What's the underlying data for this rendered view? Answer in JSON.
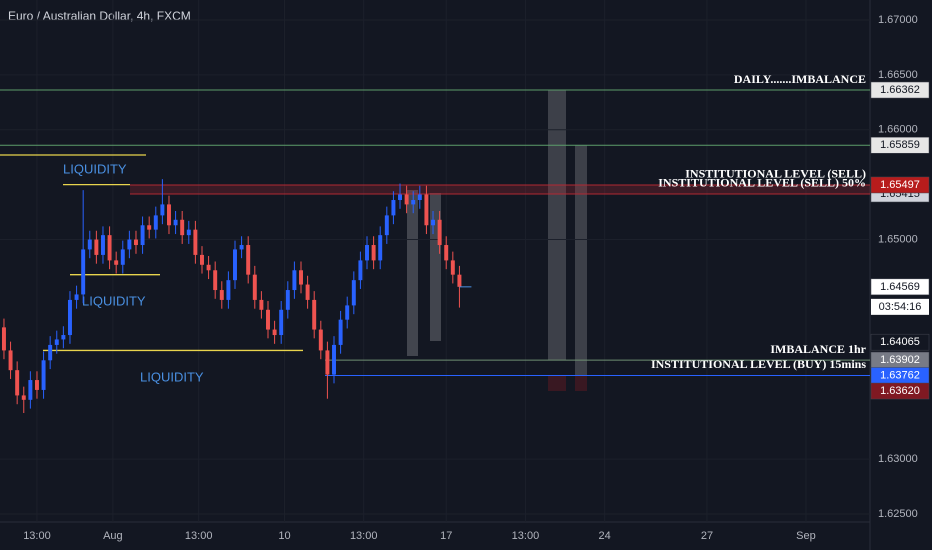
{
  "chart_data": {
    "type": "candlestick",
    "title": "Euro / Australian Dollar, 4h, FXCM",
    "open": [
      1.642,
      1.6399,
      1.6381,
      1.6358,
      1.6354,
      1.6372,
      1.6363,
      1.639,
      1.6404,
      1.6409,
      1.6413,
      1.6445,
      1.645,
      1.6491,
      1.65,
      1.6486,
      1.6504,
      1.6481,
      1.6477,
      1.6491,
      1.65,
      1.6495,
      1.6513,
      1.6509,
      1.6522,
      1.6532,
      1.6513,
      1.6518,
      1.6504,
      1.6509,
      1.6486,
      1.6477,
      1.6472,
      1.6454,
      1.6445,
      1.6463,
      1.6491,
      1.6495,
      1.6468,
      1.6445,
      1.6436,
      1.6418,
      1.6413,
      1.6436,
      1.6454,
      1.6472,
      1.6459,
      1.6445,
      1.6418,
      1.6399,
      1.6377,
      1.6404,
      1.6427,
      1.644,
      1.6463,
      1.6481,
      1.6495,
      1.6481,
      1.6504,
      1.6522,
      1.6536,
      1.6541,
      1.6532,
      1.6536,
      1.6541,
      1.6513,
      1.6518,
      1.6495,
      1.6481,
      1.6468
    ],
    "high": [
      1.6428,
      1.6407,
      1.6389,
      1.6366,
      1.638,
      1.638,
      1.6398,
      1.6412,
      1.6417,
      1.6421,
      1.6453,
      1.6458,
      1.6545,
      1.6508,
      1.6508,
      1.6512,
      1.6512,
      1.6489,
      1.6499,
      1.6508,
      1.6508,
      1.6521,
      1.6521,
      1.653,
      1.6555,
      1.654,
      1.6526,
      1.6526,
      1.6517,
      1.6517,
      1.6494,
      1.6485,
      1.648,
      1.6462,
      1.6471,
      1.6499,
      1.6503,
      1.6503,
      1.6476,
      1.6453,
      1.6444,
      1.6426,
      1.6444,
      1.6462,
      1.648,
      1.648,
      1.6467,
      1.6453,
      1.6426,
      1.6407,
      1.6412,
      1.6435,
      1.6448,
      1.6471,
      1.6489,
      1.6503,
      1.6503,
      1.6512,
      1.653,
      1.6544,
      1.6551,
      1.6549,
      1.6544,
      1.6549,
      1.6549,
      1.6526,
      1.6526,
      1.6503,
      1.6489,
      1.6476
    ],
    "low": [
      1.6391,
      1.6373,
      1.635,
      1.6342,
      1.6346,
      1.6355,
      1.6355,
      1.6382,
      1.6396,
      1.6401,
      1.6405,
      1.6437,
      1.6442,
      1.6483,
      1.6478,
      1.6478,
      1.6473,
      1.6469,
      1.6469,
      1.6483,
      1.6487,
      1.6487,
      1.6501,
      1.6501,
      1.6514,
      1.6505,
      1.6505,
      1.6496,
      1.6496,
      1.6478,
      1.6469,
      1.6464,
      1.6446,
      1.6437,
      1.6437,
      1.6455,
      1.6483,
      1.646,
      1.6437,
      1.6428,
      1.641,
      1.6405,
      1.6405,
      1.6428,
      1.6446,
      1.6451,
      1.6437,
      1.641,
      1.6391,
      1.6355,
      1.6369,
      1.6396,
      1.6419,
      1.6432,
      1.6455,
      1.6473,
      1.6473,
      1.6473,
      1.6496,
      1.6514,
      1.6528,
      1.6524,
      1.6524,
      1.6528,
      1.6505,
      1.6505,
      1.6487,
      1.6473,
      1.646,
      1.6438
    ],
    "close": [
      1.6399,
      1.6381,
      1.6358,
      1.6354,
      1.6372,
      1.6363,
      1.639,
      1.6404,
      1.6409,
      1.6413,
      1.6445,
      1.645,
      1.6491,
      1.65,
      1.6486,
      1.6504,
      1.6481,
      1.6477,
      1.6491,
      1.65,
      1.6495,
      1.6513,
      1.6509,
      1.6522,
      1.6532,
      1.6513,
      1.6518,
      1.6504,
      1.6509,
      1.6486,
      1.6477,
      1.6472,
      1.6454,
      1.6445,
      1.6463,
      1.6491,
      1.6495,
      1.6468,
      1.6445,
      1.6436,
      1.6418,
      1.6413,
      1.6436,
      1.6454,
      1.6472,
      1.6459,
      1.6445,
      1.6418,
      1.6399,
      1.6377,
      1.6404,
      1.6427,
      1.644,
      1.6463,
      1.6481,
      1.6495,
      1.6481,
      1.6504,
      1.6522,
      1.6536,
      1.6541,
      1.6532,
      1.6536,
      1.6541,
      1.6513,
      1.6518,
      1.6495,
      1.6481,
      1.6468,
      1.64569
    ],
    "up_color": "#2962ff",
    "down_color": "#ef5350",
    "xlim": [
      -0.6,
      131.2
    ],
    "xticks": [
      {
        "value": 5,
        "label": "13:00"
      },
      {
        "value": 16.5,
        "label": "Aug"
      },
      {
        "value": 29.5,
        "label": "13:00"
      },
      {
        "value": 42.5,
        "label": "10"
      },
      {
        "value": 54.5,
        "label": "13:00"
      },
      {
        "value": 67,
        "label": "17"
      },
      {
        "value": 79,
        "label": "13:00"
      },
      {
        "value": 91,
        "label": "24"
      },
      {
        "value": 106.5,
        "label": "27"
      },
      {
        "value": 121.5,
        "label": "Sep"
      }
    ],
    "ylim": [
      1.62427,
      1.67182
    ],
    "yticks": [
      {
        "value": 1.625,
        "label": "1.62500"
      },
      {
        "value": 1.63,
        "label": "1.63000"
      },
      {
        "value": 1.65,
        "label": "1.65000"
      },
      {
        "value": 1.66,
        "label": "1.66000"
      },
      {
        "value": 1.665,
        "label": "1.66500"
      },
      {
        "value": 1.67,
        "label": "1.67000"
      }
    ],
    "grid": true,
    "levels": [
      {
        "name": "DAILY.......IMBALANCE",
        "value": 1.66362,
        "value_label": "1.66362",
        "color": "#5d9e6a",
        "tag_color": "#e6e6e6",
        "tag_text_color": "#131722"
      },
      {
        "value": 1.65859,
        "value_label": "1.65859",
        "color": "#5d9e6a",
        "tag_color": "#e6e6e6",
        "tag_text_color": "#131722"
      },
      {
        "name": "INSTITUTIONAL LEVEL (SELL) 50%",
        "value": 1.65415,
        "value_label": "1.65415",
        "color": "#b22833",
        "tag_color": "#d1d4dc",
        "tag_text_color": "#131722"
      },
      {
        "name": "INSTITUTIONAL LEVEL (SELL)",
        "value": 1.65497,
        "value_label": "1.65497",
        "color": "#b22833",
        "tag_color": "#b71c1c",
        "tag_text_color": "#ffffff"
      },
      {
        "name": "IMBALANCE 1hr",
        "value": 1.63902,
        "value_label": "1.63902",
        "color": "#6f8f73",
        "tag_color": "#787b86",
        "tag_text_color": "#ffffff"
      },
      {
        "name": "INSTITUTIONAL LEVEL (BUY) 15mins",
        "value": 1.63762,
        "value_label": "1.63762",
        "color": "#2962ff",
        "tag_color": "#2962ff",
        "tag_text_color": "#ffffff"
      }
    ],
    "price_tags": [
      {
        "value": 1.64065,
        "value_label": "1.64065",
        "color": "#131722",
        "text_color": "#ffffff"
      },
      {
        "value": 1.6362,
        "value_label": "1.63620",
        "color": "#801922",
        "text_color": "#ffffff"
      },
      {
        "value": 1.64569,
        "value_label": "1.64569",
        "color": "#ffffff",
        "text_color": "#131722"
      }
    ],
    "countdown": "03:54:16",
    "liquidity": [
      {
        "label": "LIQUIDITY",
        "value": 1.655
      },
      {
        "label": "LIQUIDITY",
        "value": 1.6468
      },
      {
        "label": "LIQUIDITY",
        "value": 1.6399
      }
    ],
    "liquidity_color": "#e8d44d",
    "liquidity_extra": [
      1.6577
    ]
  }
}
